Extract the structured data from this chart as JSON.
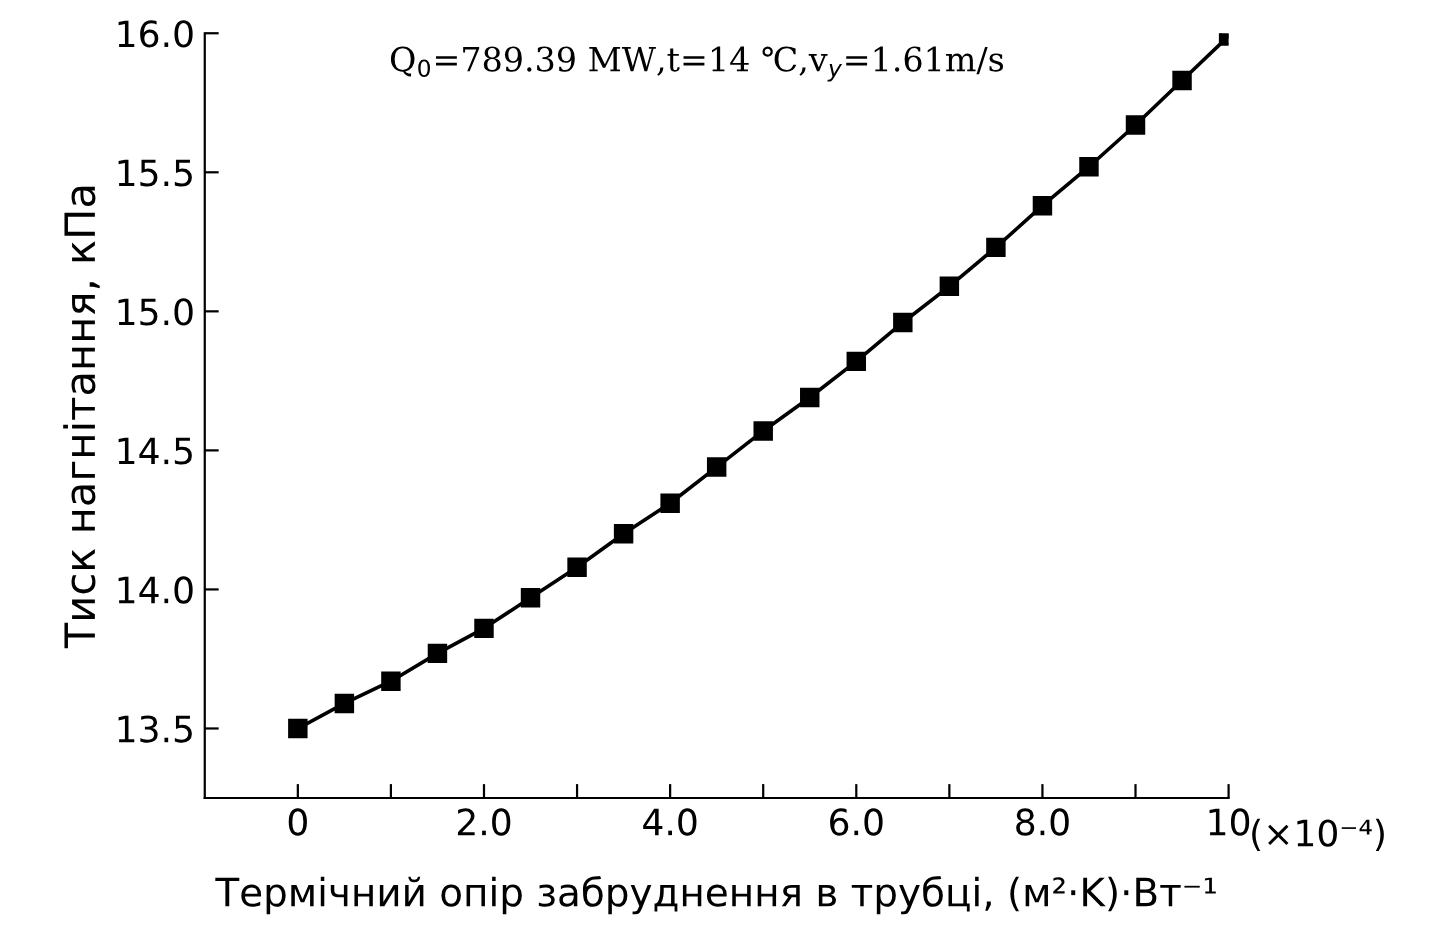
{
  "chart_data": {
    "type": "line",
    "xlabel": "Термічний опір забруднення в трубці, (м²·K)·Вт⁻¹",
    "ylabel": "Тиск нагнітання, кПа",
    "annotations": [
      "Q$_{0}$=789.39 MW,t=14 ℃,v$_{y}$=1.61m/s",
      "(×10⁻⁴)"
    ],
    "x": [
      0,
      0.5,
      1,
      1.5,
      2,
      2.5,
      3,
      3.5,
      4,
      4.5,
      5,
      5.5,
      6,
      6.5,
      7,
      7.5,
      8,
      8.5,
      9,
      9.5,
      10
    ],
    "series": [
      {
        "color": "#000000",
        "values": [
          13.5,
          13.59,
          13.67,
          13.77,
          13.86,
          13.97,
          14.08,
          14.2,
          14.31,
          14.44,
          14.57,
          14.69,
          14.82,
          14.96,
          15.09,
          15.23,
          15.38,
          15.52,
          15.67,
          15.83,
          15.99
        ]
      }
    ],
    "xlim": [
      -1,
      10
    ],
    "ylim": [
      13.25,
      16.0
    ],
    "xticks": [
      0,
      {
        "value": 1,
        "label": null
      },
      {
        "value": 2,
        "label": "2.0"
      },
      {
        "value": 3,
        "label": null
      },
      {
        "value": 4,
        "label": "4.0"
      },
      {
        "value": 5,
        "label": null
      },
      {
        "value": 6,
        "label": "6.0"
      },
      {
        "value": 7,
        "label": null
      },
      {
        "value": 8,
        "label": "8.0"
      },
      {
        "value": 9,
        "label": null
      },
      10
    ],
    "yticks": [
      {
        "value": 13.5,
        "label": "13.5"
      },
      {
        "value": 14,
        "label": "14.0"
      },
      {
        "value": 14.5,
        "label": "14.5"
      },
      {
        "value": 15,
        "label": "15.0"
      },
      {
        "value": 15.5,
        "label": "15.5"
      },
      {
        "value": 16,
        "label": "16.0"
      }
    ],
    "marker": "square",
    "line_style": "solid",
    "grid": false,
    "legend": false
  }
}
